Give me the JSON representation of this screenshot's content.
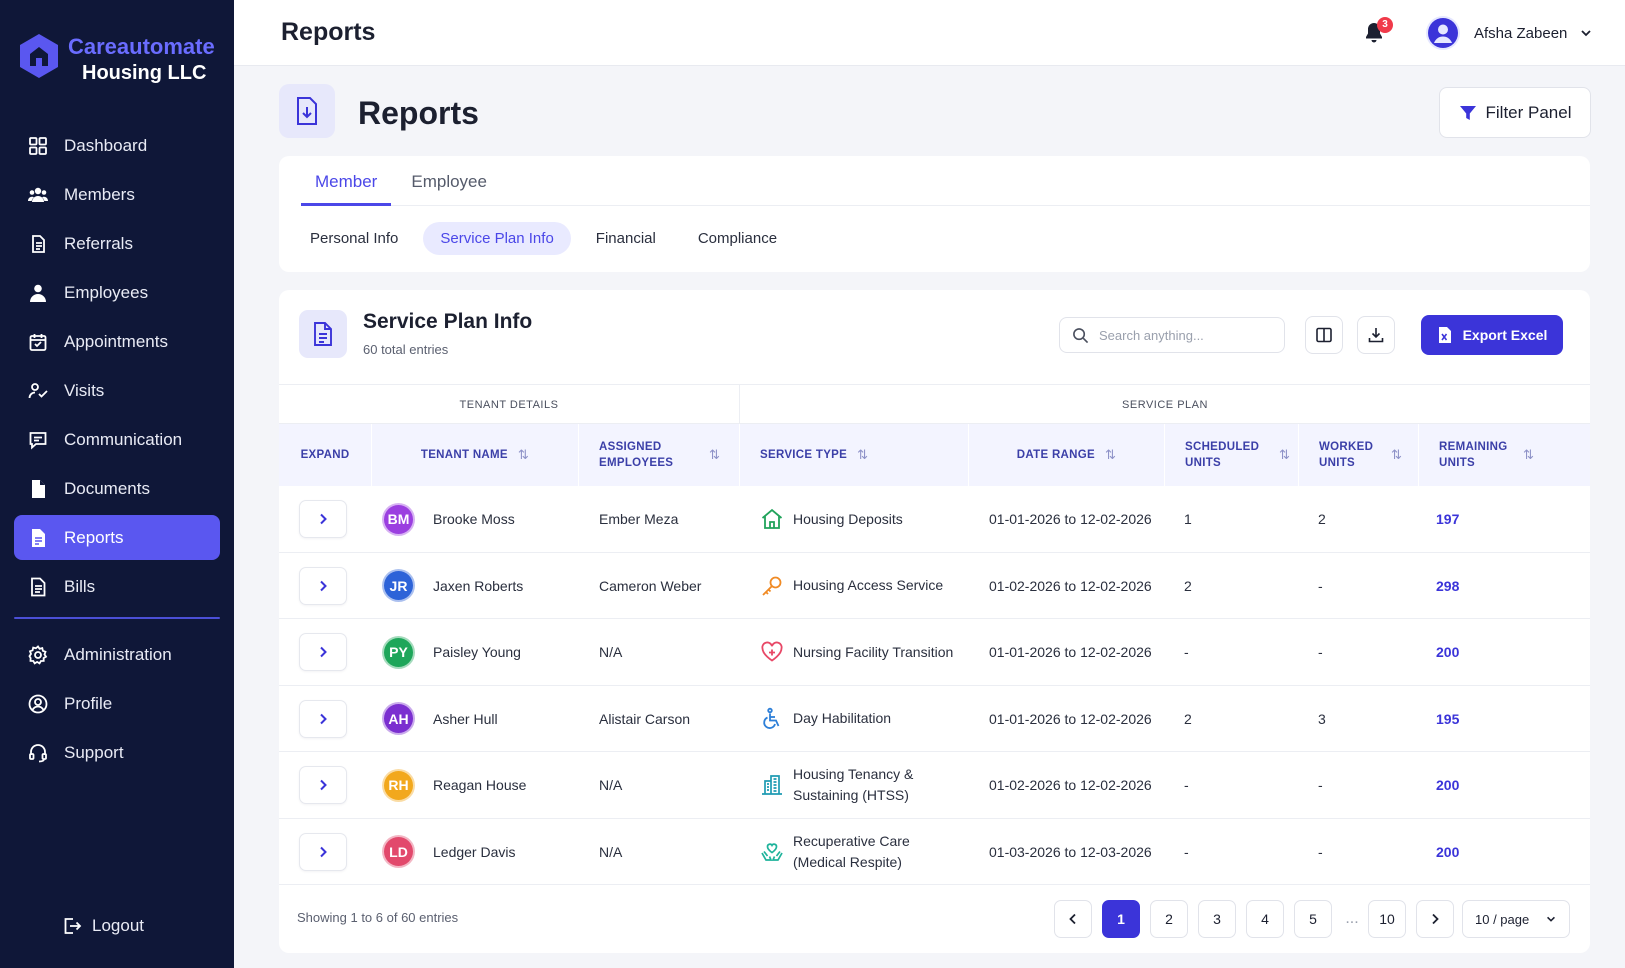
{
  "brand": {
    "line1": "Careautomate",
    "line2": "Housing LLC"
  },
  "sidebar": {
    "items": [
      {
        "label": "Dashboard",
        "icon": "grid-icon"
      },
      {
        "label": "Members",
        "icon": "users-icon"
      },
      {
        "label": "Referrals",
        "icon": "clipboard-icon"
      },
      {
        "label": "Employees",
        "icon": "user-badge-icon"
      },
      {
        "label": "Appointments",
        "icon": "calendar-icon"
      },
      {
        "label": "Visits",
        "icon": "visit-icon"
      },
      {
        "label": "Communication",
        "icon": "message-icon"
      },
      {
        "label": "Documents",
        "icon": "document-icon"
      },
      {
        "label": "Reports",
        "icon": "report-icon",
        "active": true
      },
      {
        "label": "Bills",
        "icon": "bill-icon"
      }
    ],
    "secondary": [
      {
        "label": "Administration",
        "icon": "gear-icon"
      },
      {
        "label": "Profile",
        "icon": "profile-icon"
      },
      {
        "label": "Support",
        "icon": "headset-icon"
      }
    ],
    "logout": "Logout"
  },
  "header": {
    "title": "Reports",
    "notification_count": "3",
    "user_name": "Afsha Zabeen"
  },
  "page": {
    "title": "Reports",
    "filter_label": "Filter Panel"
  },
  "tabs": {
    "main": [
      {
        "label": "Member",
        "active": true
      },
      {
        "label": "Employee",
        "active": false
      }
    ],
    "sub": [
      {
        "label": "Personal Info",
        "active": false
      },
      {
        "label": "Service Plan Info",
        "active": true
      },
      {
        "label": "Financial",
        "active": false
      },
      {
        "label": "Compliance",
        "active": false
      }
    ]
  },
  "section": {
    "title": "Service Plan Info",
    "subtitle": "60 total entries",
    "search_placeholder": "Search anything...",
    "export_label": "Export Excel"
  },
  "table": {
    "groups": {
      "tenant": "TENANT DETAILS",
      "service": "SERVICE PLAN"
    },
    "headers": {
      "expand": "EXPAND",
      "tenant_name": "TENANT NAME",
      "assigned_1": "ASSIGNED",
      "assigned_2": "EMPLOYEES",
      "service_type": "SERVICE TYPE",
      "date_range": "DATE RANGE",
      "scheduled_1": "SCHEDULED",
      "scheduled_2": "UNITS",
      "worked_1": "WORKED",
      "worked_2": "UNITS",
      "remaining_1": "REMAINING",
      "remaining_2": "UNITS"
    },
    "rows": [
      {
        "initials": "BM",
        "color": "#9b3fe0",
        "name": "Brooke Moss",
        "employee": "Ember Meza",
        "service_1": "Housing Deposits",
        "service_2": "",
        "icon": "house-icon",
        "date": "01-01-2026 to 12-02-2026",
        "scheduled": "1",
        "worked": "2",
        "remaining": "197"
      },
      {
        "initials": "JR",
        "color": "#2d63d8",
        "name": "Jaxen Roberts",
        "employee": "Cameron Weber",
        "service_1": "Housing Access Service",
        "service_2": "",
        "icon": "key-icon",
        "date": "01-02-2026 to 12-02-2026",
        "scheduled": "2",
        "worked": "-",
        "remaining": "298"
      },
      {
        "initials": "PY",
        "color": "#1ea65a",
        "name": "Paisley Young",
        "employee": "N/A",
        "service_1": "Nursing Facility Transition",
        "service_2": "",
        "icon": "heart-plus-icon",
        "date": "01-01-2026 to 12-02-2026",
        "scheduled": "-",
        "worked": "-",
        "remaining": "200"
      },
      {
        "initials": "AH",
        "color": "#7b2fd0",
        "name": "Asher Hull",
        "employee": "Alistair Carson",
        "service_1": "Day Habilitation",
        "service_2": "",
        "icon": "wheelchair-icon",
        "date": "01-01-2026 to 12-02-2026",
        "scheduled": "2",
        "worked": "3",
        "remaining": "195"
      },
      {
        "initials": "RH",
        "color": "#f2a81d",
        "name": "Reagan House",
        "employee": "N/A",
        "service_1": "Housing Tenancy &",
        "service_2": "Sustaining (HTSS)",
        "icon": "building-icon",
        "date": "01-02-2026 to 12-02-2026",
        "scheduled": "-",
        "worked": "-",
        "remaining": "200"
      },
      {
        "initials": "LD",
        "color": "#e2496c",
        "name": "Ledger Davis",
        "employee": "N/A",
        "service_1": "Recuperative Care",
        "service_2": "(Medical Respite)",
        "icon": "care-hands-icon",
        "date": "01-03-2026 to 12-03-2026",
        "scheduled": "-",
        "worked": "-",
        "remaining": "200"
      }
    ]
  },
  "pagination": {
    "showing": "Showing 1 to 6 of 60 entries",
    "pages": [
      "1",
      "2",
      "3",
      "4",
      "5"
    ],
    "dots": "...",
    "last": "10",
    "per_page": "10 / page"
  }
}
